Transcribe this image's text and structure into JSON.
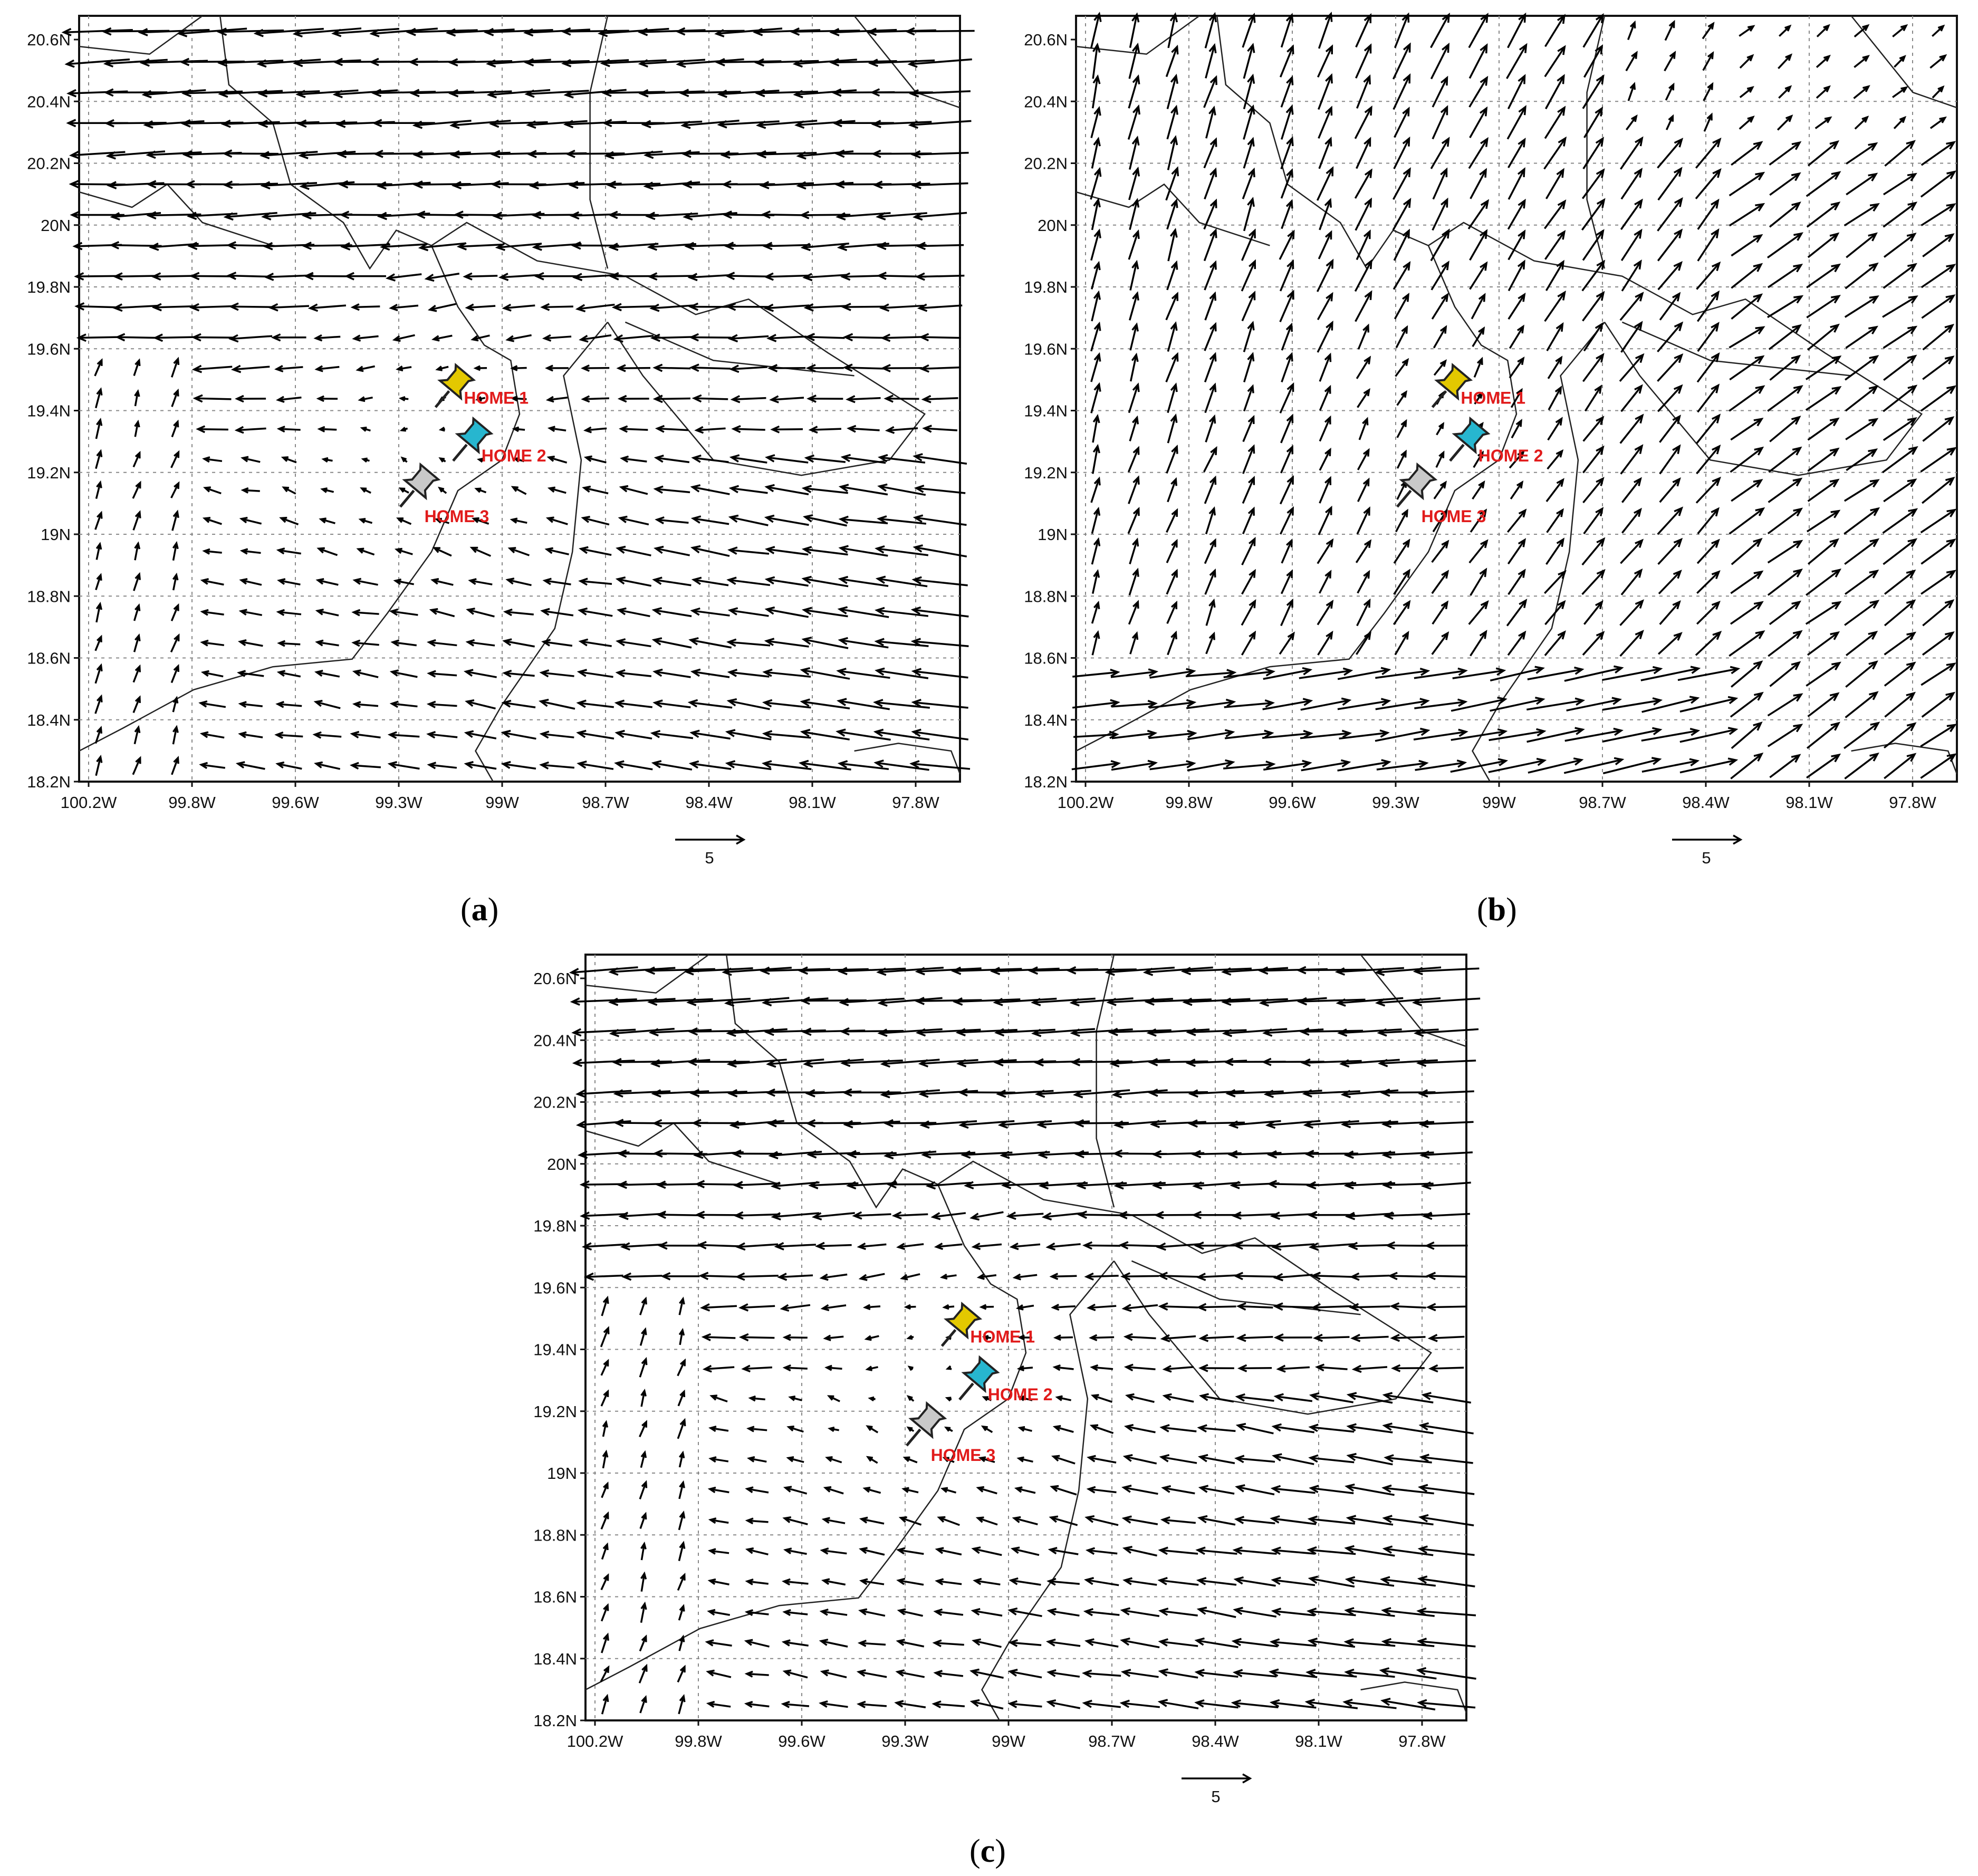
{
  "figure": {
    "panels": [
      {
        "id": "a",
        "caption_letter": "a",
        "flow": "a"
      },
      {
        "id": "b",
        "caption_letter": "b",
        "flow": "b"
      },
      {
        "id": "c",
        "caption_letter": "c",
        "flow": "c"
      }
    ],
    "lat_ticks": [
      "20.6N",
      "20.4N",
      "20.2N",
      "20N",
      "19.8N",
      "19.6N",
      "19.4N",
      "19.2N",
      "19N",
      "18.8N",
      "18.6N",
      "18.4N",
      "18.2N"
    ],
    "lon_ticks": [
      "100.2W",
      "99.8W",
      "99.6W",
      "99.3W",
      "99W",
      "98.7W",
      "98.4W",
      "98.1W",
      "97.8W"
    ],
    "reference_vector_label": "5",
    "markers": [
      {
        "label": "HOME 1",
        "color": "#e3c800"
      },
      {
        "label": "HOME 2",
        "color": "#27b6cf"
      },
      {
        "label": "HOME 3",
        "color": "#c9c9c9"
      }
    ],
    "arrow_color": "#000000"
  },
  "chart_data": [
    {
      "type": "vector-field",
      "panel": "a",
      "grid_lines": true,
      "reference_vector": 5,
      "description_values": {
        "north_flow": "westward",
        "south_flow": "westward",
        "center": "convergent at HOME sites"
      }
    },
    {
      "type": "vector-field",
      "panel": "b",
      "grid_lines": true,
      "reference_vector": 5,
      "description_values": {
        "flow": "north/northeastward",
        "south_flow": "eastward"
      }
    },
    {
      "type": "vector-field",
      "panel": "c",
      "grid_lines": true,
      "reference_vector": 5,
      "description_values": {
        "north_flow": "westward",
        "south_flow": "westward",
        "center": "convergent at HOME sites"
      }
    }
  ]
}
